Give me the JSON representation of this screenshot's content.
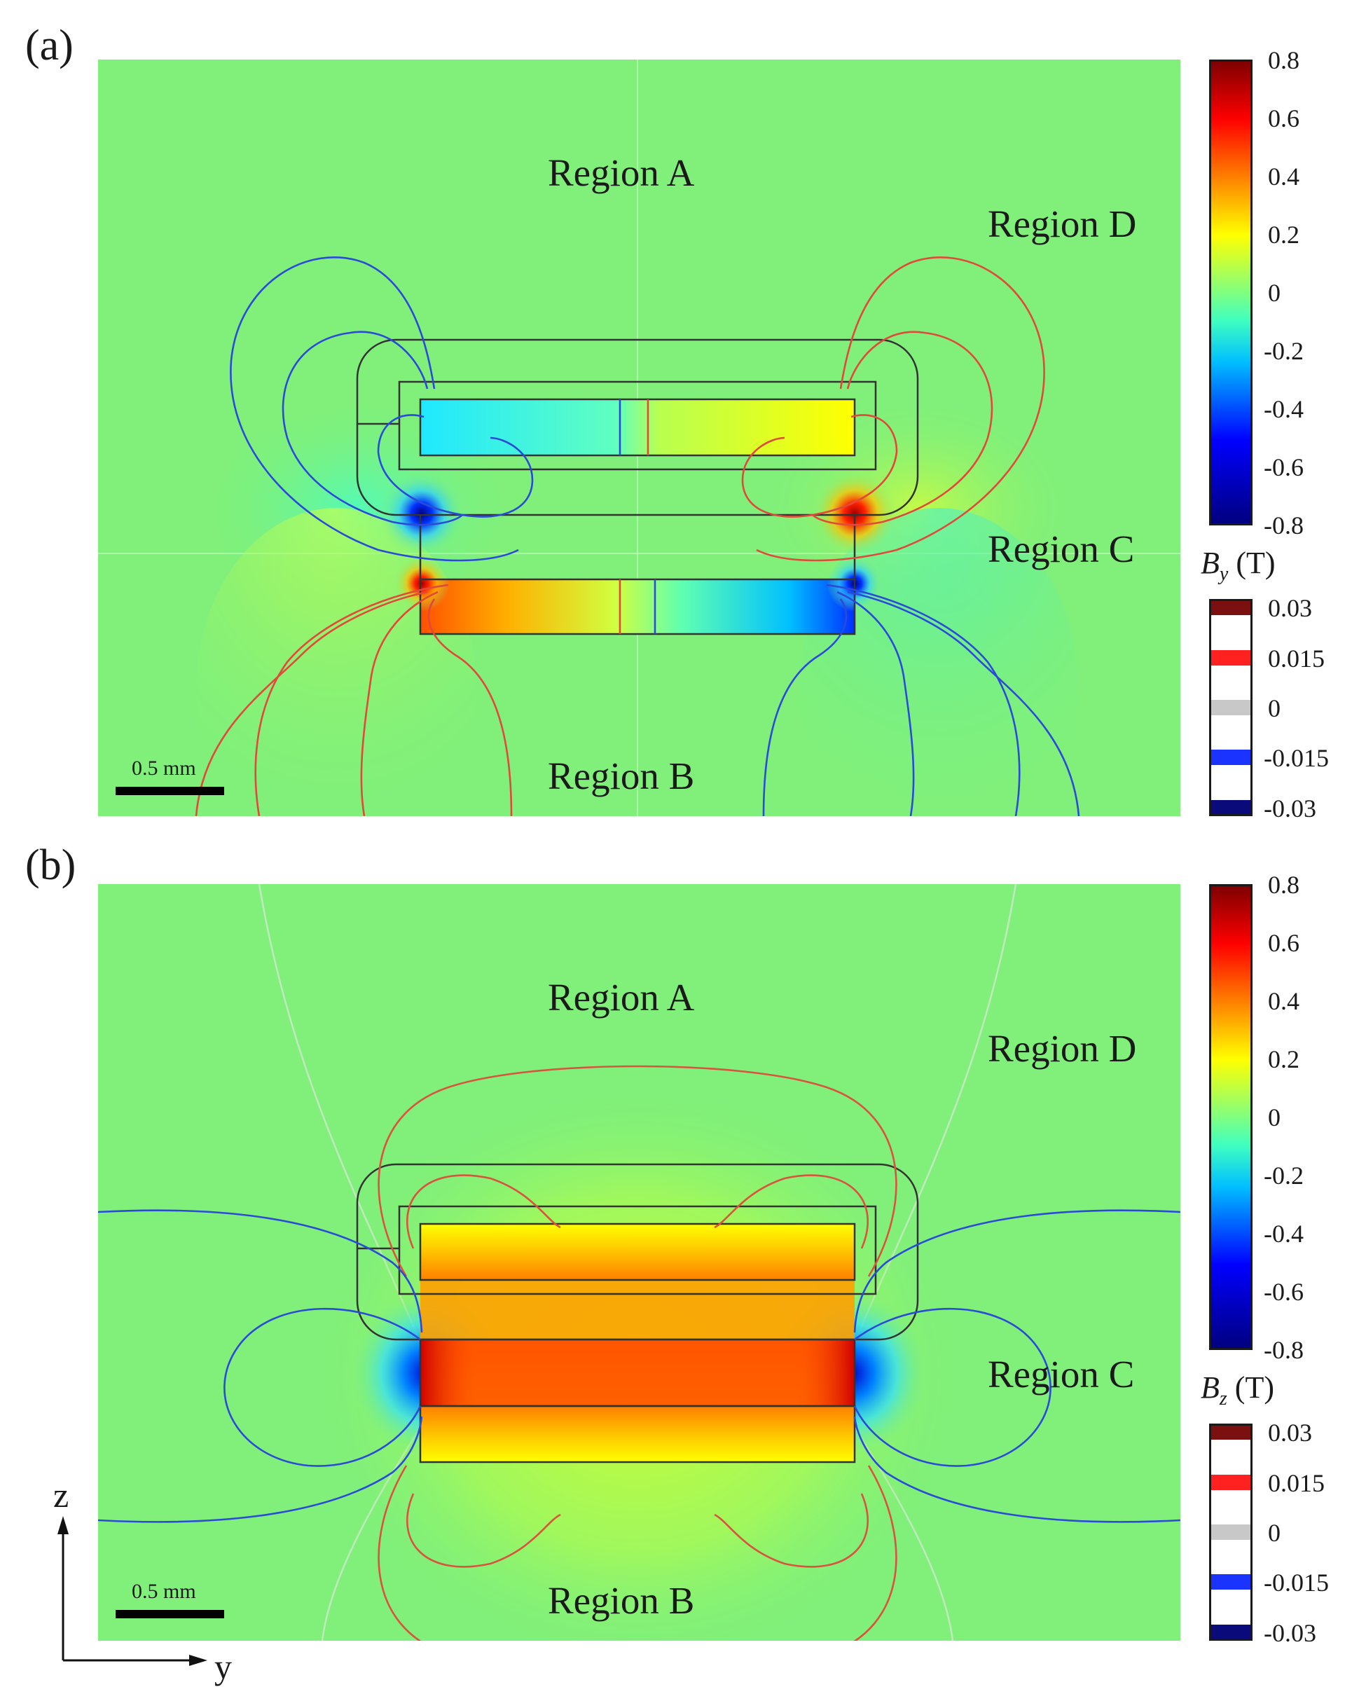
{
  "panels": [
    {
      "label": "(a)",
      "regions": {
        "a": "Region A",
        "b": "Region B",
        "c": "Region C",
        "d": "Region D"
      },
      "scale_bar": "0.5 mm",
      "colorbar": {
        "symbol": "B",
        "subscript": "y",
        "unit": "(T)",
        "ticks": [
          "0.8",
          "0.6",
          "0.4",
          "0.2",
          "0",
          "-0.2",
          "-0.4",
          "-0.6",
          "-0.8"
        ],
        "range": [
          -0.8,
          0.8
        ]
      },
      "contour_legend": {
        "ticks": [
          "0.03",
          "0.015",
          "0",
          "-0.015",
          "-0.03"
        ],
        "colors": [
          "#7a1010",
          "#ff2020",
          "#c8c8c8",
          "#1a33ff",
          "#0a0a7a"
        ]
      }
    },
    {
      "label": "(b)",
      "regions": {
        "a": "Region A",
        "b": "Region B",
        "c": "Region C",
        "d": "Region D"
      },
      "scale_bar": "0.5 mm",
      "colorbar": {
        "symbol": "B",
        "subscript": "z",
        "unit": "(T)",
        "ticks": [
          "0.8",
          "0.6",
          "0.4",
          "0.2",
          "0",
          "-0.2",
          "-0.4",
          "-0.6",
          "-0.8"
        ],
        "range": [
          -0.8,
          0.8
        ]
      },
      "contour_legend": {
        "ticks": [
          "0.03",
          "0.015",
          "0",
          "-0.015",
          "-0.03"
        ],
        "colors": [
          "#7a1010",
          "#ff2020",
          "#c8c8c8",
          "#1a33ff",
          "#0a0a7a"
        ]
      }
    }
  ],
  "axes": {
    "vertical": "z",
    "horizontal": "y"
  },
  "colors": {
    "background_field": "#80f07a",
    "jet_scale": [
      "#00007f",
      "#0000ff",
      "#00bfff",
      "#40ffbf",
      "#80ff80",
      "#ffff00",
      "#ff8000",
      "#ff0000",
      "#7f0000"
    ]
  }
}
